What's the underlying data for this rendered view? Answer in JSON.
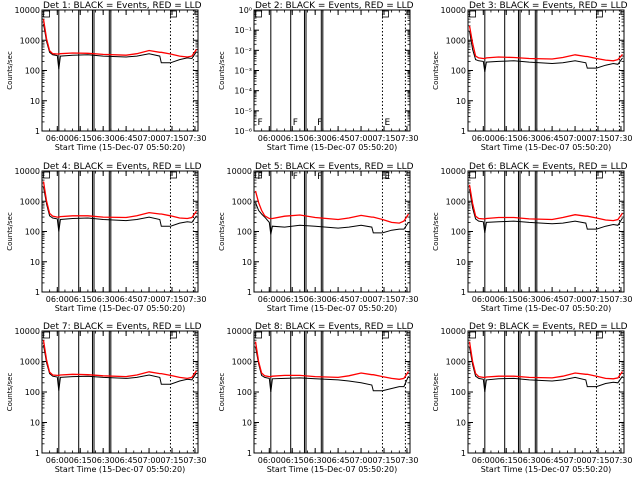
{
  "colors": {
    "events": "#000000",
    "lld": "#ff0000",
    "axes": "#000000"
  },
  "common": {
    "xlabel": "Start Time (15-Dec-07 05:50:20)",
    "ylabel": "Counts/sec",
    "x_ticks": [
      "06:00",
      "06:15",
      "06:30",
      "06:45",
      "07:00",
      "07:15",
      "07:30"
    ],
    "y_ticks": [
      "1",
      "10",
      "100",
      "1000",
      "10000"
    ],
    "y_ticks_low": [
      "10⁻⁶",
      "10⁻⁵",
      "10⁻⁴",
      "10⁻³",
      "10⁻²",
      "10⁻¹",
      "10⁰"
    ],
    "saa_markers": [
      "F",
      "F",
      "F",
      "E"
    ]
  },
  "chart_data": [
    {
      "type": "line",
      "title": "Det 1: BLACK = Events, RED = LLD",
      "scale": "log",
      "ylim": [
        1,
        10000
      ],
      "xlim": [
        "05:50",
        "07:32"
      ],
      "grid": false,
      "x_ticks": [
        "06:00",
        "06:15",
        "06:30",
        "06:45",
        "07:00",
        "07:15",
        "07:30"
      ],
      "y_ticks": [
        1,
        10,
        100,
        1000,
        10000
      ],
      "data_gaps_solid": [
        "06:01",
        "06:14",
        "06:23",
        "06:24",
        "06:34",
        "06:35"
      ],
      "data_gaps_dotted": [
        "07:14",
        "07:29"
      ],
      "x": [
        "05:51",
        "05:53",
        "05:55",
        "05:57",
        "06:00",
        "06:01",
        "06:02",
        "06:10",
        "06:20",
        "06:30",
        "06:45",
        "06:52",
        "07:00",
        "07:07",
        "07:08",
        "07:14",
        "07:20",
        "07:25",
        "07:28",
        "07:31"
      ],
      "series": [
        {
          "name": "BLACK = Events",
          "values": [
            3500,
            900,
            400,
            330,
            310,
            110,
            300,
            320,
            330,
            300,
            280,
            300,
            360,
            300,
            180,
            180,
            230,
            260,
            250,
            420
          ]
        },
        {
          "name": "RED = LLD",
          "values": [
            5000,
            1100,
            450,
            360,
            350,
            350,
            360,
            380,
            370,
            340,
            320,
            360,
            460,
            400,
            400,
            350,
            300,
            280,
            300,
            500
          ]
        }
      ]
    },
    {
      "type": "line",
      "title": "Det 2: BLACK = Events, RED = LLD",
      "scale": "log",
      "ylim": [
        1e-06,
        1
      ],
      "xlim": [
        "05:50",
        "07:32"
      ],
      "grid": false,
      "x_ticks": [
        "06:00",
        "06:15",
        "06:30",
        "06:45",
        "07:00",
        "07:15",
        "07:30"
      ],
      "y_ticks": [
        1e-06,
        1e-05,
        0.0001,
        0.001,
        0.01,
        0.1,
        1
      ],
      "data_gaps_solid": [
        "06:01",
        "06:14",
        "06:23",
        "06:24",
        "06:34",
        "06:35"
      ],
      "data_gaps_dotted": [
        "07:14",
        "07:29"
      ],
      "x": [],
      "series": [
        {
          "name": "BLACK = Events",
          "values": []
        },
        {
          "name": "RED = LLD",
          "values": []
        }
      ]
    },
    {
      "type": "line",
      "title": "Det 3: BLACK = Events, RED = LLD",
      "scale": "log",
      "ylim": [
        1,
        10000
      ],
      "xlim": [
        "05:50",
        "07:32"
      ],
      "grid": false,
      "x_ticks": [
        "06:00",
        "06:15",
        "06:30",
        "06:45",
        "07:00",
        "07:15",
        "07:30"
      ],
      "y_ticks": [
        1,
        10,
        100,
        1000,
        10000
      ],
      "data_gaps_solid": [
        "06:01",
        "06:14",
        "06:23",
        "06:24",
        "06:34",
        "06:35"
      ],
      "data_gaps_dotted": [
        "07:14",
        "07:29"
      ],
      "x": [
        "05:51",
        "05:53",
        "05:55",
        "05:57",
        "06:00",
        "06:01",
        "06:02",
        "06:10",
        "06:20",
        "06:30",
        "06:45",
        "06:52",
        "07:00",
        "07:07",
        "07:08",
        "07:14",
        "07:20",
        "07:25",
        "07:28",
        "07:31"
      ],
      "series": [
        {
          "name": "BLACK = Events",
          "values": [
            2000,
            500,
            230,
            210,
            200,
            90,
            190,
            200,
            210,
            190,
            170,
            180,
            210,
            180,
            120,
            120,
            150,
            170,
            160,
            260
          ]
        },
        {
          "name": "RED = LLD",
          "values": [
            3000,
            800,
            300,
            260,
            250,
            250,
            260,
            280,
            270,
            250,
            240,
            270,
            330,
            290,
            290,
            250,
            220,
            210,
            230,
            340
          ]
        }
      ]
    },
    {
      "type": "line",
      "title": "Det 4: BLACK = Events, RED = LLD",
      "scale": "log",
      "ylim": [
        1,
        10000
      ],
      "xlim": [
        "05:50",
        "07:32"
      ],
      "grid": false,
      "x_ticks": [
        "06:00",
        "06:15",
        "06:30",
        "06:45",
        "07:00",
        "07:15",
        "07:30"
      ],
      "y_ticks": [
        1,
        10,
        100,
        1000,
        10000
      ],
      "data_gaps_solid": [
        "06:01",
        "06:14",
        "06:23",
        "06:24",
        "06:34",
        "06:35"
      ],
      "data_gaps_dotted": [
        "07:14",
        "07:29"
      ],
      "x": [
        "05:51",
        "05:53",
        "05:55",
        "05:57",
        "06:00",
        "06:01",
        "06:02",
        "06:10",
        "06:20",
        "06:30",
        "06:45",
        "06:52",
        "07:00",
        "07:07",
        "07:08",
        "07:14",
        "07:20",
        "07:25",
        "07:28",
        "07:31"
      ],
      "series": [
        {
          "name": "BLACK = Events",
          "values": [
            3000,
            800,
            330,
            280,
            260,
            100,
            250,
            270,
            280,
            250,
            230,
            250,
            300,
            250,
            150,
            150,
            190,
            210,
            200,
            330
          ]
        },
        {
          "name": "RED = LLD",
          "values": [
            4500,
            1000,
            400,
            320,
            300,
            300,
            310,
            330,
            330,
            300,
            290,
            330,
            420,
            380,
            380,
            330,
            280,
            270,
            290,
            470
          ]
        }
      ]
    },
    {
      "type": "line",
      "title": "Det 5: BLACK = Events, RED = LLD",
      "scale": "log",
      "ylim": [
        1,
        10000
      ],
      "xlim": [
        "05:50",
        "07:32"
      ],
      "grid": false,
      "x_ticks": [
        "06:00",
        "06:15",
        "06:30",
        "06:45",
        "07:00",
        "07:15",
        "07:30"
      ],
      "y_ticks": [
        1,
        10,
        100,
        1000,
        10000
      ],
      "data_gaps_solid": [
        "06:01",
        "06:14",
        "06:23",
        "06:24",
        "06:34",
        "06:35"
      ],
      "data_gaps_dotted": [
        "07:14",
        "07:29"
      ],
      "x": [
        "05:51",
        "05:53",
        "05:55",
        "05:57",
        "06:00",
        "06:01",
        "06:02",
        "06:10",
        "06:20",
        "06:30",
        "06:45",
        "06:52",
        "07:00",
        "07:07",
        "07:08",
        "07:14",
        "07:20",
        "07:25",
        "07:28",
        "07:31"
      ],
      "series": [
        {
          "name": "BLACK = Events",
          "values": [
            900,
            500,
            380,
            300,
            200,
            80,
            150,
            140,
            160,
            150,
            130,
            140,
            160,
            140,
            90,
            90,
            110,
            120,
            120,
            200
          ]
        },
        {
          "name": "RED = LLD",
          "values": [
            2200,
            900,
            500,
            330,
            270,
            270,
            270,
            320,
            350,
            290,
            250,
            280,
            340,
            300,
            300,
            250,
            200,
            190,
            220,
            380
          ]
        }
      ]
    },
    {
      "type": "line",
      "title": "Det 6: BLACK = Events, RED = LLD",
      "scale": "log",
      "ylim": [
        1,
        10000
      ],
      "xlim": [
        "05:50",
        "07:32"
      ],
      "grid": false,
      "x_ticks": [
        "06:00",
        "06:15",
        "06:30",
        "06:45",
        "07:00",
        "07:15",
        "07:30"
      ],
      "y_ticks": [
        1,
        10,
        100,
        1000,
        10000
      ],
      "data_gaps_solid": [
        "06:01",
        "06:14",
        "06:23",
        "06:24",
        "06:34",
        "06:35"
      ],
      "data_gaps_dotted": [
        "07:14",
        "07:29"
      ],
      "x": [
        "05:51",
        "05:53",
        "05:55",
        "05:57",
        "06:00",
        "06:01",
        "06:02",
        "06:10",
        "06:20",
        "06:30",
        "06:45",
        "06:52",
        "07:00",
        "07:07",
        "07:08",
        "07:14",
        "07:20",
        "07:25",
        "07:28",
        "07:31"
      ],
      "series": [
        {
          "name": "BLACK = Events",
          "values": [
            2500,
            600,
            260,
            220,
            210,
            90,
            200,
            210,
            220,
            200,
            180,
            190,
            220,
            190,
            120,
            120,
            150,
            170,
            160,
            280
          ]
        },
        {
          "name": "RED = LLD",
          "values": [
            3500,
            850,
            320,
            270,
            260,
            260,
            270,
            290,
            290,
            260,
            250,
            290,
            360,
            320,
            320,
            280,
            240,
            230,
            250,
            400
          ]
        }
      ]
    },
    {
      "type": "line",
      "title": "Det 7: BLACK = Events, RED = LLD",
      "scale": "log",
      "ylim": [
        1,
        10000
      ],
      "xlim": [
        "05:50",
        "07:32"
      ],
      "grid": false,
      "x_ticks": [
        "06:00",
        "06:15",
        "06:30",
        "06:45",
        "07:00",
        "07:15",
        "07:30"
      ],
      "y_ticks": [
        1,
        10,
        100,
        1000,
        10000
      ],
      "data_gaps_solid": [
        "06:01",
        "06:14",
        "06:23",
        "06:24",
        "06:34",
        "06:35"
      ],
      "data_gaps_dotted": [
        "07:14",
        "07:29"
      ],
      "x": [
        "05:51",
        "05:53",
        "05:55",
        "05:57",
        "06:00",
        "06:01",
        "06:02",
        "06:10",
        "06:20",
        "06:30",
        "06:45",
        "06:52",
        "07:00",
        "07:07",
        "07:08",
        "07:14",
        "07:20",
        "07:25",
        "07:28",
        "07:31"
      ],
      "series": [
        {
          "name": "BLACK = Events",
          "values": [
            3500,
            900,
            400,
            330,
            310,
            110,
            300,
            320,
            330,
            300,
            280,
            300,
            360,
            300,
            180,
            180,
            230,
            260,
            250,
            420
          ]
        },
        {
          "name": "RED = LLD",
          "values": [
            5000,
            1100,
            450,
            360,
            350,
            350,
            360,
            380,
            370,
            340,
            320,
            360,
            460,
            400,
            400,
            350,
            300,
            280,
            300,
            500
          ]
        }
      ]
    },
    {
      "type": "line",
      "title": "Det 8: BLACK = Events, RED = LLD",
      "scale": "log",
      "ylim": [
        1,
        10000
      ],
      "xlim": [
        "05:50",
        "07:32"
      ],
      "grid": false,
      "x_ticks": [
        "06:00",
        "06:15",
        "06:30",
        "06:45",
        "07:00",
        "07:15",
        "07:30"
      ],
      "y_ticks": [
        1,
        10,
        100,
        1000,
        10000
      ],
      "data_gaps_solid": [
        "06:01",
        "06:14",
        "06:23",
        "06:24",
        "06:34",
        "06:35"
      ],
      "data_gaps_dotted": [
        "07:14",
        "07:29"
      ],
      "x": [
        "05:51",
        "05:53",
        "05:55",
        "05:57",
        "06:00",
        "06:01",
        "06:02",
        "06:10",
        "06:20",
        "06:30",
        "06:45",
        "06:52",
        "07:00",
        "07:07",
        "07:08",
        "07:14",
        "07:20",
        "07:25",
        "07:28",
        "07:31"
      ],
      "series": [
        {
          "name": "BLACK = Events",
          "values": [
            3000,
            850,
            350,
            300,
            280,
            100,
            270,
            280,
            290,
            270,
            250,
            230,
            200,
            170,
            110,
            110,
            130,
            150,
            150,
            330
          ]
        },
        {
          "name": "RED = LLD",
          "values": [
            4500,
            1000,
            420,
            340,
            320,
            320,
            330,
            350,
            350,
            320,
            300,
            340,
            420,
            370,
            370,
            320,
            280,
            260,
            280,
            470
          ]
        }
      ]
    },
    {
      "type": "line",
      "title": "Det 9: BLACK = Events, RED = LLD",
      "scale": "log",
      "ylim": [
        1,
        10000
      ],
      "xlim": [
        "05:50",
        "07:32"
      ],
      "grid": false,
      "x_ticks": [
        "06:00",
        "06:15",
        "06:30",
        "06:45",
        "07:00",
        "07:15",
        "07:30"
      ],
      "y_ticks": [
        1,
        10,
        100,
        1000,
        10000
      ],
      "data_gaps_solid": [
        "06:01",
        "06:14",
        "06:23",
        "06:24",
        "06:34",
        "06:35"
      ],
      "data_gaps_dotted": [
        "07:14",
        "07:29"
      ],
      "x": [
        "05:51",
        "05:53",
        "05:55",
        "05:57",
        "06:00",
        "06:01",
        "06:02",
        "06:10",
        "06:20",
        "06:30",
        "06:45",
        "06:52",
        "07:00",
        "07:07",
        "07:08",
        "07:14",
        "07:20",
        "07:25",
        "07:28",
        "07:31"
      ],
      "series": [
        {
          "name": "BLACK = Events",
          "values": [
            3000,
            800,
            330,
            280,
            260,
            100,
            250,
            270,
            280,
            250,
            230,
            250,
            300,
            250,
            150,
            150,
            190,
            210,
            200,
            330
          ]
        },
        {
          "name": "RED = LLD",
          "values": [
            4500,
            1000,
            400,
            320,
            300,
            300,
            310,
            330,
            330,
            300,
            290,
            330,
            420,
            380,
            380,
            330,
            280,
            270,
            290,
            470
          ]
        }
      ]
    }
  ]
}
